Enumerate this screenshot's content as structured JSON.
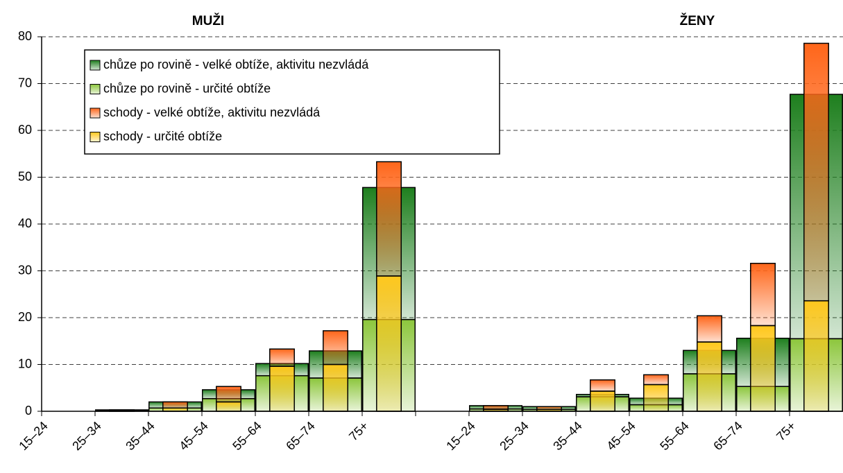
{
  "chart_data": {
    "type": "bar",
    "group_labels": [
      "MUŽI",
      "ŽENY"
    ],
    "categories": [
      "15–24",
      "25–34",
      "35–44",
      "45–54",
      "55–64",
      "65–74",
      "75+",
      null,
      "15–24",
      "25–34",
      "35–44",
      "45–54",
      "55–64",
      "65–74",
      "75+"
    ],
    "series": [
      {
        "name": "chůze po rovině - velké obtíže, aktivitu nezvládá",
        "color": "#1e7f1e",
        "values": [
          0,
          0.1,
          1.3,
          1.9,
          2.6,
          5.8,
          28.2,
          null,
          0.7,
          0.6,
          0.5,
          1.4,
          5.0,
          10.3,
          52.2
        ]
      },
      {
        "name": "chůze po rovině - určité obtíže",
        "color": "#8cc63c",
        "values": [
          0,
          0.2,
          0.7,
          2.7,
          7.6,
          7.1,
          19.6,
          null,
          0.5,
          0.4,
          3.1,
          1.4,
          8.0,
          5.3,
          15.5
        ]
      },
      {
        "name": "schody - velké obtíže, aktivitu nezvládá",
        "color": "#ff661a",
        "values": [
          0,
          0.1,
          1.3,
          3.3,
          3.7,
          7.2,
          24.4,
          null,
          0.8,
          0.6,
          2.4,
          2.1,
          5.6,
          13.3,
          55.0
        ]
      },
      {
        "name": "schody - určité obtíže",
        "color": "#ffc81e",
        "values": [
          0,
          0.2,
          0.7,
          2.0,
          9.6,
          10.0,
          28.9,
          null,
          0.4,
          0.4,
          4.3,
          5.7,
          14.8,
          18.3,
          23.6
        ]
      }
    ],
    "ylim": [
      0,
      80
    ],
    "yticks": [
      0,
      10,
      20,
      30,
      40,
      50,
      60,
      70,
      80
    ],
    "grid": true
  }
}
